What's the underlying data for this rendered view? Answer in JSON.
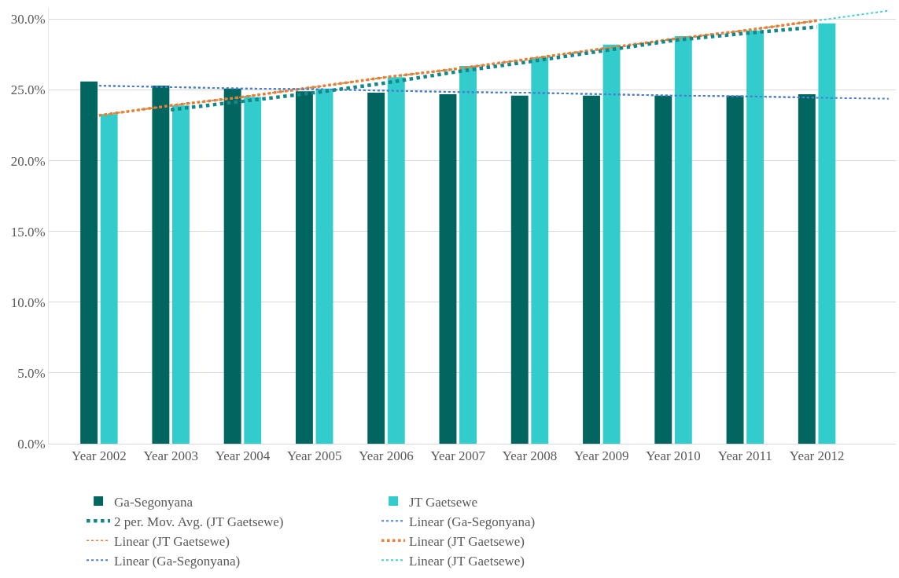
{
  "chart_data": {
    "type": "bar",
    "categories": [
      "Year 2002",
      "Year 2003",
      "Year 2004",
      "Year 2005",
      "Year 2006",
      "Year 2007",
      "Year 2008",
      "Year 2009",
      "Year 2010",
      "Year 2011",
      "Year 2012",
      null
    ],
    "ylim": [
      0,
      30.8
    ],
    "yticks": [
      {
        "value": 0,
        "label": "0.0%"
      },
      {
        "value": 5,
        "label": "5.0%"
      },
      {
        "value": 10,
        "label": "10.0%"
      },
      {
        "value": 15,
        "label": "15.0%"
      },
      {
        "value": 20,
        "label": "20.0%"
      },
      {
        "value": 25,
        "label": "25.0%"
      },
      {
        "value": 30,
        "label": "30.0%"
      }
    ],
    "grid": "y",
    "legend": "bottom",
    "series": [
      {
        "name": "Ga-Segonyana",
        "color": "#00665f",
        "values": [
          25.6,
          25.3,
          25.1,
          24.9,
          24.8,
          24.7,
          24.6,
          24.6,
          24.6,
          24.6,
          24.7,
          null
        ]
      },
      {
        "name": "JT Gaetsewe",
        "color": "#33cccc",
        "values": [
          23.3,
          23.9,
          24.5,
          25.1,
          25.9,
          26.7,
          27.3,
          28.2,
          28.8,
          29.2,
          29.7,
          null
        ]
      },
      {
        "name": "2 per. Mov. Avg. (JT Gaetsewe)",
        "type": "line",
        "line_style": "dotted",
        "color": "#13878a",
        "values": [
          null,
          23.6,
          24.2,
          24.8,
          25.5,
          26.3,
          27.0,
          27.75,
          28.5,
          29.0,
          29.45,
          null
        ]
      },
      {
        "name": "Linear (Ga-Segonyana)",
        "type": "line",
        "line_style": "dotted",
        "color": "#4a7fd0",
        "values": [
          25.3,
          25.2,
          25.1,
          25.05,
          24.95,
          24.85,
          24.8,
          24.7,
          24.6,
          24.55,
          24.45,
          24.38
        ]
      },
      {
        "name": "Linear (JT Gaetsewe)",
        "type": "line",
        "line_style": "dotted",
        "color": "#ed7d31",
        "values": [
          23.2,
          23.9,
          24.5,
          25.2,
          25.9,
          26.5,
          27.2,
          27.9,
          28.6,
          29.2,
          29.9,
          null
        ]
      },
      {
        "name": "Linear (JT Gaetsewe)",
        "type": "line",
        "line_style": "dotted",
        "color": "#ed7d31",
        "values": [
          23.2,
          23.9,
          24.5,
          25.2,
          25.9,
          26.5,
          27.2,
          27.9,
          28.6,
          29.2,
          29.9,
          null
        ]
      },
      {
        "name": "Linear (Ga-Segonyana)",
        "type": "line",
        "line_style": "dotted",
        "color": "#4a7fd0",
        "values": [
          25.3,
          25.2,
          25.1,
          25.05,
          24.95,
          24.85,
          24.8,
          24.7,
          24.6,
          24.55,
          24.45,
          null
        ]
      },
      {
        "name": "Linear (JT Gaetsewe)",
        "type": "line",
        "line_style": "dotted",
        "color": "#40d0d0",
        "values": [
          23.2,
          23.9,
          24.5,
          25.2,
          25.9,
          26.5,
          27.2,
          27.9,
          28.6,
          29.2,
          29.9,
          30.6
        ]
      }
    ]
  }
}
